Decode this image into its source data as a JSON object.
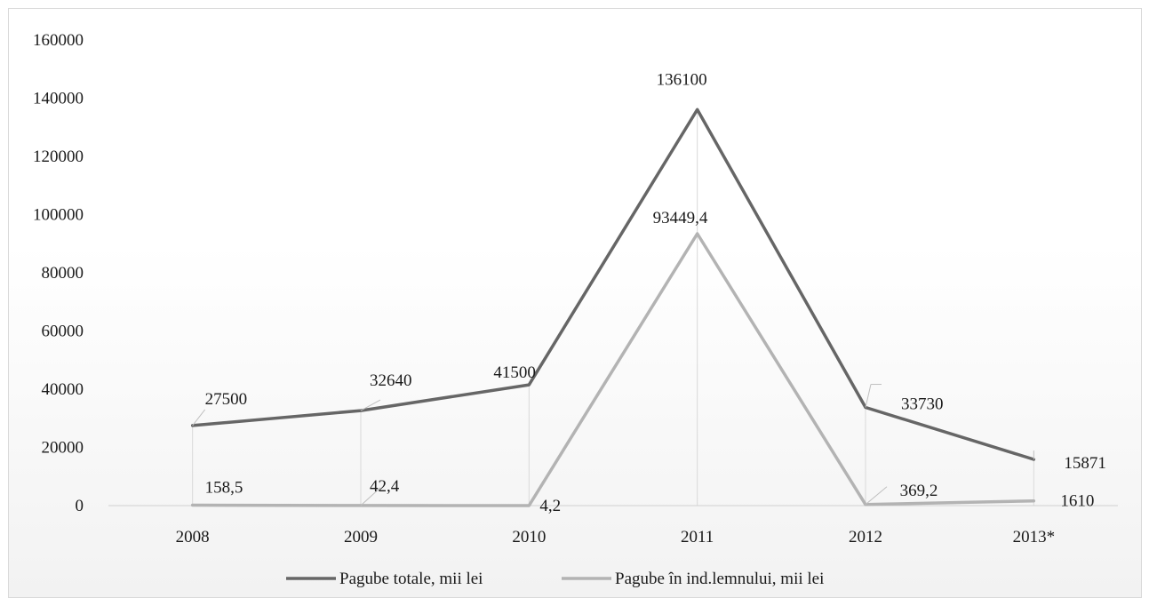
{
  "chart_data": {
    "type": "line",
    "categories": [
      "2008",
      "2009",
      "2010",
      "2011",
      "2012",
      "2013*"
    ],
    "y_ticks": [
      "0",
      "20000",
      "40000",
      "60000",
      "80000",
      "100000",
      "120000",
      "140000",
      "160000"
    ],
    "ylim": [
      0,
      160000
    ],
    "grid": false,
    "legend_position": "bottom",
    "series": [
      {
        "name": "Pagube totale, mii lei",
        "color": "#666666",
        "values": [
          27500,
          32640,
          41500,
          136100,
          33730,
          15871
        ],
        "labels": [
          "27500",
          "32640",
          "41500",
          "136100",
          "33730",
          "15871"
        ]
      },
      {
        "name": "Pagube în ind.lemnului, mii lei",
        "color": "#b3b3b3",
        "values": [
          158.5,
          42.4,
          4.2,
          93449.4,
          369.2,
          1610
        ],
        "labels": [
          "158,5",
          "42,4",
          "4,2",
          "93449,4",
          "369,2",
          "1610"
        ]
      }
    ]
  }
}
